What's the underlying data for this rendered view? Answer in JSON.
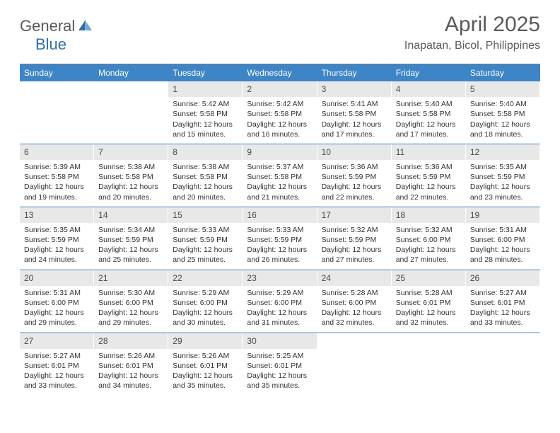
{
  "logo": {
    "general": "General",
    "blue": "Blue"
  },
  "title": "April 2025",
  "location": "Inapatan, Bicol, Philippines",
  "weekdays": [
    "Sunday",
    "Monday",
    "Tuesday",
    "Wednesday",
    "Thursday",
    "Friday",
    "Saturday"
  ],
  "colors": {
    "header_bg": "#3d85c6",
    "header_fg": "#ffffff",
    "daynum_bg": "#e8e8e8",
    "text": "#333333",
    "sep": "#3d85c6"
  },
  "weeks": [
    [
      {
        "n": "",
        "sr": "",
        "ss": "",
        "dl": ""
      },
      {
        "n": "",
        "sr": "",
        "ss": "",
        "dl": ""
      },
      {
        "n": "1",
        "sr": "Sunrise: 5:42 AM",
        "ss": "Sunset: 5:58 PM",
        "dl": "Daylight: 12 hours and 15 minutes."
      },
      {
        "n": "2",
        "sr": "Sunrise: 5:42 AM",
        "ss": "Sunset: 5:58 PM",
        "dl": "Daylight: 12 hours and 16 minutes."
      },
      {
        "n": "3",
        "sr": "Sunrise: 5:41 AM",
        "ss": "Sunset: 5:58 PM",
        "dl": "Daylight: 12 hours and 17 minutes."
      },
      {
        "n": "4",
        "sr": "Sunrise: 5:40 AM",
        "ss": "Sunset: 5:58 PM",
        "dl": "Daylight: 12 hours and 17 minutes."
      },
      {
        "n": "5",
        "sr": "Sunrise: 5:40 AM",
        "ss": "Sunset: 5:58 PM",
        "dl": "Daylight: 12 hours and 18 minutes."
      }
    ],
    [
      {
        "n": "6",
        "sr": "Sunrise: 5:39 AM",
        "ss": "Sunset: 5:58 PM",
        "dl": "Daylight: 12 hours and 19 minutes."
      },
      {
        "n": "7",
        "sr": "Sunrise: 5:38 AM",
        "ss": "Sunset: 5:58 PM",
        "dl": "Daylight: 12 hours and 20 minutes."
      },
      {
        "n": "8",
        "sr": "Sunrise: 5:38 AM",
        "ss": "Sunset: 5:58 PM",
        "dl": "Daylight: 12 hours and 20 minutes."
      },
      {
        "n": "9",
        "sr": "Sunrise: 5:37 AM",
        "ss": "Sunset: 5:58 PM",
        "dl": "Daylight: 12 hours and 21 minutes."
      },
      {
        "n": "10",
        "sr": "Sunrise: 5:36 AM",
        "ss": "Sunset: 5:59 PM",
        "dl": "Daylight: 12 hours and 22 minutes."
      },
      {
        "n": "11",
        "sr": "Sunrise: 5:36 AM",
        "ss": "Sunset: 5:59 PM",
        "dl": "Daylight: 12 hours and 22 minutes."
      },
      {
        "n": "12",
        "sr": "Sunrise: 5:35 AM",
        "ss": "Sunset: 5:59 PM",
        "dl": "Daylight: 12 hours and 23 minutes."
      }
    ],
    [
      {
        "n": "13",
        "sr": "Sunrise: 5:35 AM",
        "ss": "Sunset: 5:59 PM",
        "dl": "Daylight: 12 hours and 24 minutes."
      },
      {
        "n": "14",
        "sr": "Sunrise: 5:34 AM",
        "ss": "Sunset: 5:59 PM",
        "dl": "Daylight: 12 hours and 25 minutes."
      },
      {
        "n": "15",
        "sr": "Sunrise: 5:33 AM",
        "ss": "Sunset: 5:59 PM",
        "dl": "Daylight: 12 hours and 25 minutes."
      },
      {
        "n": "16",
        "sr": "Sunrise: 5:33 AM",
        "ss": "Sunset: 5:59 PM",
        "dl": "Daylight: 12 hours and 26 minutes."
      },
      {
        "n": "17",
        "sr": "Sunrise: 5:32 AM",
        "ss": "Sunset: 5:59 PM",
        "dl": "Daylight: 12 hours and 27 minutes."
      },
      {
        "n": "18",
        "sr": "Sunrise: 5:32 AM",
        "ss": "Sunset: 6:00 PM",
        "dl": "Daylight: 12 hours and 27 minutes."
      },
      {
        "n": "19",
        "sr": "Sunrise: 5:31 AM",
        "ss": "Sunset: 6:00 PM",
        "dl": "Daylight: 12 hours and 28 minutes."
      }
    ],
    [
      {
        "n": "20",
        "sr": "Sunrise: 5:31 AM",
        "ss": "Sunset: 6:00 PM",
        "dl": "Daylight: 12 hours and 29 minutes."
      },
      {
        "n": "21",
        "sr": "Sunrise: 5:30 AM",
        "ss": "Sunset: 6:00 PM",
        "dl": "Daylight: 12 hours and 29 minutes."
      },
      {
        "n": "22",
        "sr": "Sunrise: 5:29 AM",
        "ss": "Sunset: 6:00 PM",
        "dl": "Daylight: 12 hours and 30 minutes."
      },
      {
        "n": "23",
        "sr": "Sunrise: 5:29 AM",
        "ss": "Sunset: 6:00 PM",
        "dl": "Daylight: 12 hours and 31 minutes."
      },
      {
        "n": "24",
        "sr": "Sunrise: 5:28 AM",
        "ss": "Sunset: 6:00 PM",
        "dl": "Daylight: 12 hours and 32 minutes."
      },
      {
        "n": "25",
        "sr": "Sunrise: 5:28 AM",
        "ss": "Sunset: 6:01 PM",
        "dl": "Daylight: 12 hours and 32 minutes."
      },
      {
        "n": "26",
        "sr": "Sunrise: 5:27 AM",
        "ss": "Sunset: 6:01 PM",
        "dl": "Daylight: 12 hours and 33 minutes."
      }
    ],
    [
      {
        "n": "27",
        "sr": "Sunrise: 5:27 AM",
        "ss": "Sunset: 6:01 PM",
        "dl": "Daylight: 12 hours and 33 minutes."
      },
      {
        "n": "28",
        "sr": "Sunrise: 5:26 AM",
        "ss": "Sunset: 6:01 PM",
        "dl": "Daylight: 12 hours and 34 minutes."
      },
      {
        "n": "29",
        "sr": "Sunrise: 5:26 AM",
        "ss": "Sunset: 6:01 PM",
        "dl": "Daylight: 12 hours and 35 minutes."
      },
      {
        "n": "30",
        "sr": "Sunrise: 5:25 AM",
        "ss": "Sunset: 6:01 PM",
        "dl": "Daylight: 12 hours and 35 minutes."
      },
      {
        "n": "",
        "sr": "",
        "ss": "",
        "dl": ""
      },
      {
        "n": "",
        "sr": "",
        "ss": "",
        "dl": ""
      },
      {
        "n": "",
        "sr": "",
        "ss": "",
        "dl": ""
      }
    ]
  ]
}
